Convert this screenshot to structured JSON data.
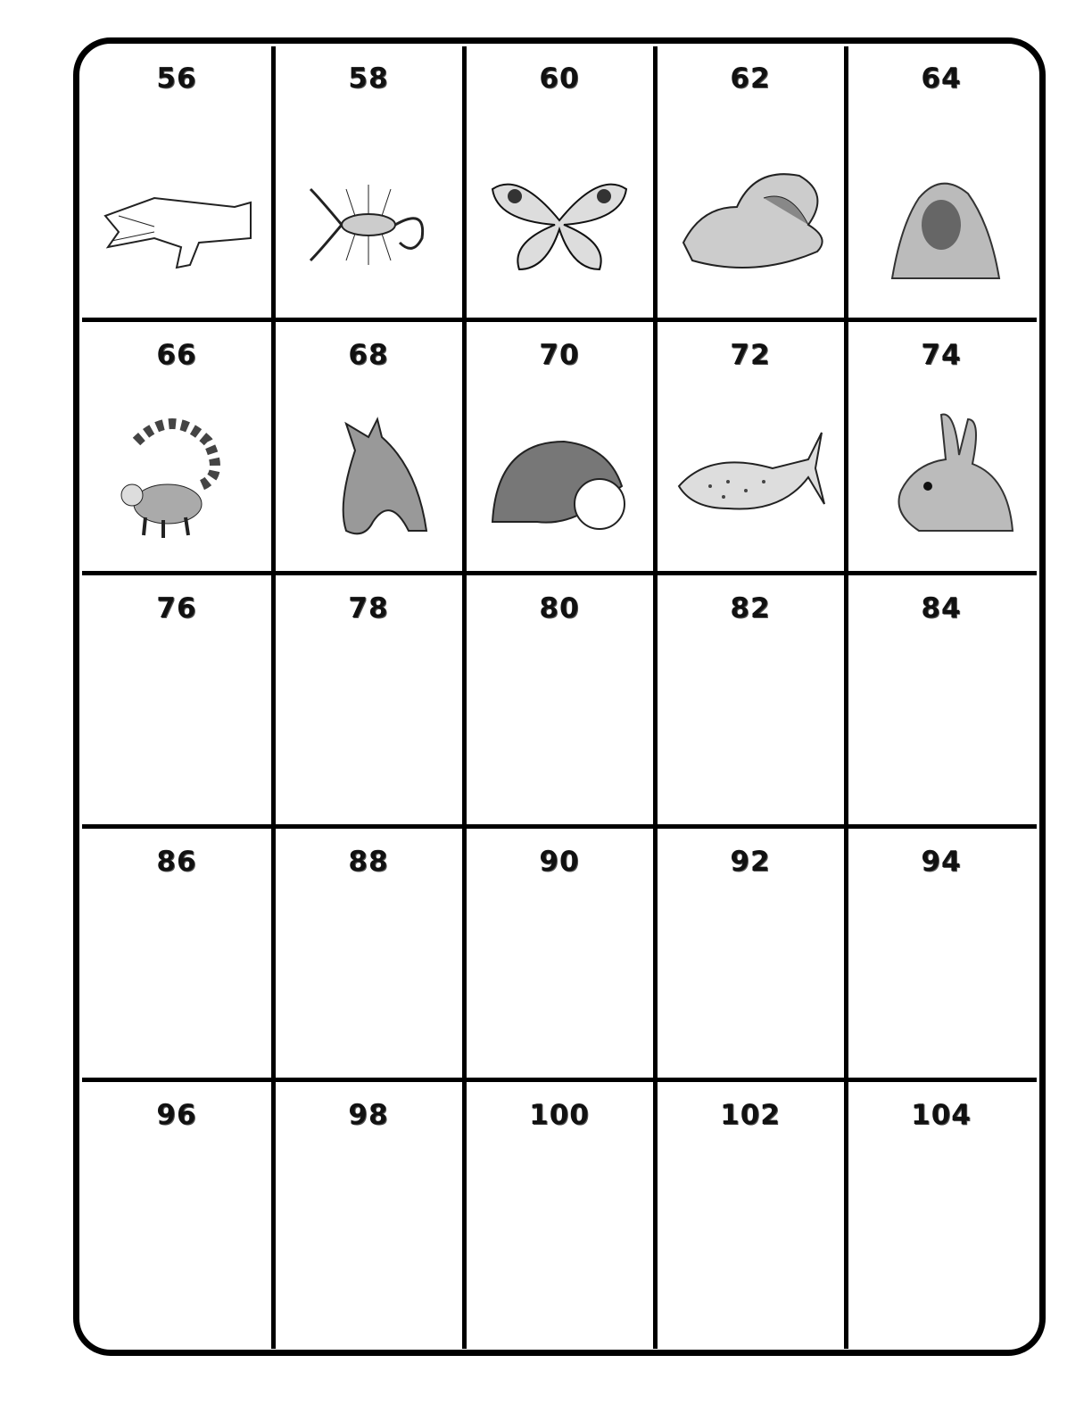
{
  "cells": [
    {
      "number": "56",
      "image": "crocodile-illustration"
    },
    {
      "number": "58",
      "image": "scorpion-illustration"
    },
    {
      "number": "60",
      "image": "butterfly-illustration"
    },
    {
      "number": "62",
      "image": "hippo-illustration"
    },
    {
      "number": "64",
      "image": "gorilla-illustration"
    },
    {
      "number": "66",
      "image": "lemur-illustration"
    },
    {
      "number": "68",
      "image": "horse-illustration"
    },
    {
      "number": "70",
      "image": "hedgehog-illustration"
    },
    {
      "number": "72",
      "image": "whale-shark-illustration"
    },
    {
      "number": "74",
      "image": "rabbit-illustration"
    },
    {
      "number": "76"
    },
    {
      "number": "78"
    },
    {
      "number": "80"
    },
    {
      "number": "82"
    },
    {
      "number": "84"
    },
    {
      "number": "86"
    },
    {
      "number": "88"
    },
    {
      "number": "90"
    },
    {
      "number": "92"
    },
    {
      "number": "94"
    },
    {
      "number": "96"
    },
    {
      "number": "98"
    },
    {
      "number": "100"
    },
    {
      "number": "102"
    },
    {
      "number": "104"
    }
  ]
}
